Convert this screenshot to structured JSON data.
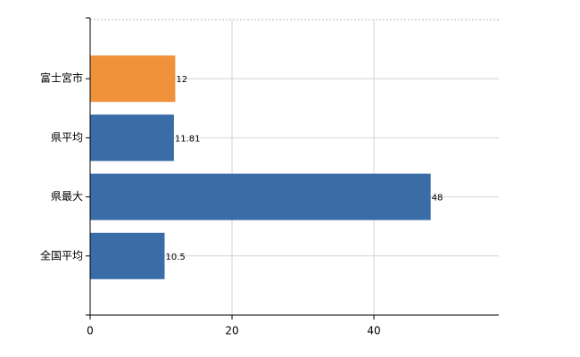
{
  "chart_data": {
    "type": "barh",
    "categories": [
      "富士宮市",
      "県平均",
      "県最大",
      "全国平均"
    ],
    "values": [
      12,
      11.81,
      48,
      10.5
    ],
    "colors": [
      "#f0923a",
      "#3a6da8",
      "#3a6da8",
      "#3a6da8"
    ],
    "xlim": [
      0,
      57.6
    ],
    "xticks": [
      0,
      20,
      40
    ],
    "grid": true
  }
}
